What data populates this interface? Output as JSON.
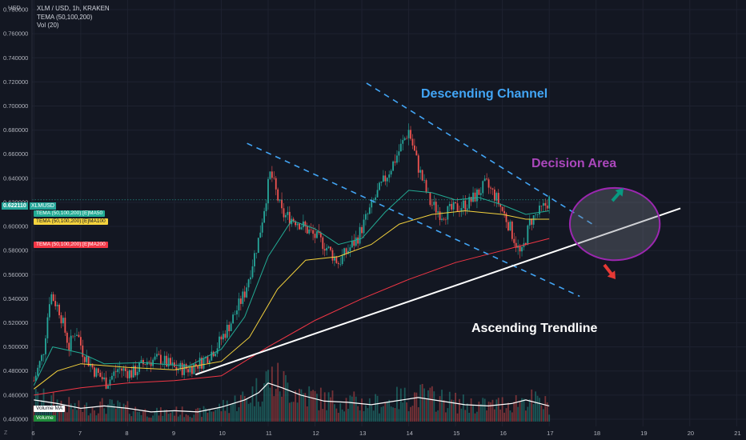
{
  "header": {
    "currency": "USD",
    "symbol_line": "XLM / USD, 1h, KRAKEN",
    "indicator1": "TEMA (50,100,200)",
    "indicator2": "Vol (20)"
  },
  "price_tags": {
    "last_price": "0.622110",
    "last_symbol": "XLMUSD",
    "ema50": "TEMA (50,100,200):[E]MA50",
    "ema100": "TEMA (50,100,200):[E]MA100",
    "ema200": "TEMA (50,100,200):[E]MA200",
    "volume_ma": "Volume MA",
    "volume": "Volume"
  },
  "colors": {
    "background": "#131722",
    "candle_up": "#26a69a",
    "candle_down": "#ef5350",
    "ema50": "#22ab94",
    "ema100": "#f5d33d",
    "ema200": "#f23645",
    "channel": "#42a5f5",
    "trendline": "#ffffff",
    "decision": "#9c27b0",
    "arrow_up": "#089981",
    "arrow_down": "#e53935",
    "last_price": "#26a69a"
  },
  "annotations": {
    "descending_channel": "Descending Channel",
    "decision_area": "Decision Area",
    "ascending_trendline": "Ascending Trendline"
  },
  "chart_data": {
    "type": "candlestick",
    "x_unit": "day",
    "x_ticks": [
      "6",
      "7",
      "8",
      "9",
      "10",
      "11",
      "12",
      "13",
      "14",
      "15",
      "16",
      "17",
      "18",
      "19",
      "20",
      "21"
    ],
    "y_ticks": [
      "0.440000",
      "0.460000",
      "0.480000",
      "0.500000",
      "0.520000",
      "0.540000",
      "0.560000",
      "0.580000",
      "0.600000",
      "0.620000",
      "0.640000",
      "0.660000",
      "0.680000",
      "0.700000",
      "0.720000",
      "0.740000",
      "0.760000",
      "0.780000"
    ],
    "ylim": [
      0.434,
      0.788
    ],
    "xlim": [
      5.96,
      21.2
    ],
    "last_price": 0.62211,
    "price_path": [
      [
        6.0,
        0.472
      ],
      [
        6.2,
        0.495
      ],
      [
        6.35,
        0.545
      ],
      [
        6.55,
        0.53
      ],
      [
        6.75,
        0.5
      ],
      [
        6.9,
        0.515
      ],
      [
        7.05,
        0.495
      ],
      [
        7.3,
        0.48
      ],
      [
        7.55,
        0.47
      ],
      [
        7.8,
        0.482
      ],
      [
        8.1,
        0.478
      ],
      [
        8.4,
        0.488
      ],
      [
        8.7,
        0.49
      ],
      [
        9.0,
        0.482
      ],
      [
        9.3,
        0.482
      ],
      [
        9.6,
        0.488
      ],
      [
        9.9,
        0.5
      ],
      [
        10.2,
        0.52
      ],
      [
        10.5,
        0.545
      ],
      [
        10.8,
        0.59
      ],
      [
        11.05,
        0.645
      ],
      [
        11.3,
        0.61
      ],
      [
        11.6,
        0.605
      ],
      [
        11.9,
        0.595
      ],
      [
        12.2,
        0.585
      ],
      [
        12.5,
        0.57
      ],
      [
        12.9,
        0.59
      ],
      [
        13.3,
        0.625
      ],
      [
        13.7,
        0.655
      ],
      [
        14.0,
        0.68
      ],
      [
        14.2,
        0.65
      ],
      [
        14.45,
        0.62
      ],
      [
        14.7,
        0.61
      ],
      [
        15.0,
        0.615
      ],
      [
        15.3,
        0.62
      ],
      [
        15.65,
        0.635
      ],
      [
        15.85,
        0.625
      ],
      [
        16.1,
        0.605
      ],
      [
        16.4,
        0.575
      ],
      [
        16.6,
        0.605
      ],
      [
        16.8,
        0.612
      ],
      [
        17.0,
        0.622
      ]
    ],
    "ema50": [
      [
        6.0,
        0.468
      ],
      [
        6.4,
        0.5
      ],
      [
        7.0,
        0.495
      ],
      [
        7.5,
        0.486
      ],
      [
        8.3,
        0.487
      ],
      [
        9.3,
        0.484
      ],
      [
        10.0,
        0.498
      ],
      [
        10.5,
        0.525
      ],
      [
        11.0,
        0.575
      ],
      [
        11.5,
        0.605
      ],
      [
        12.0,
        0.598
      ],
      [
        12.5,
        0.585
      ],
      [
        13.0,
        0.59
      ],
      [
        13.5,
        0.612
      ],
      [
        14.0,
        0.63
      ],
      [
        14.5,
        0.628
      ],
      [
        15.0,
        0.622
      ],
      [
        15.5,
        0.624
      ],
      [
        16.0,
        0.618
      ],
      [
        16.5,
        0.61
      ],
      [
        17.0,
        0.613
      ]
    ],
    "ema100": [
      [
        6.0,
        0.465
      ],
      [
        6.5,
        0.48
      ],
      [
        7.0,
        0.486
      ],
      [
        8.0,
        0.483
      ],
      [
        9.0,
        0.481
      ],
      [
        10.0,
        0.488
      ],
      [
        10.6,
        0.508
      ],
      [
        11.2,
        0.548
      ],
      [
        11.8,
        0.572
      ],
      [
        12.5,
        0.575
      ],
      [
        13.2,
        0.585
      ],
      [
        13.8,
        0.602
      ],
      [
        14.5,
        0.61
      ],
      [
        15.2,
        0.613
      ],
      [
        16.0,
        0.61
      ],
      [
        16.5,
        0.606
      ],
      [
        17.0,
        0.606
      ]
    ],
    "ema200": [
      [
        6.0,
        0.46
      ],
      [
        7.0,
        0.466
      ],
      [
        8.0,
        0.47
      ],
      [
        9.0,
        0.472
      ],
      [
        10.0,
        0.476
      ],
      [
        11.0,
        0.5
      ],
      [
        12.0,
        0.522
      ],
      [
        13.0,
        0.54
      ],
      [
        14.0,
        0.556
      ],
      [
        15.0,
        0.57
      ],
      [
        16.0,
        0.58
      ],
      [
        17.0,
        0.59
      ]
    ],
    "volume_ma": [
      [
        6.0,
        0.456
      ],
      [
        6.5,
        0.453
      ],
      [
        7.0,
        0.449
      ],
      [
        7.5,
        0.451
      ],
      [
        8.0,
        0.449
      ],
      [
        8.5,
        0.446
      ],
      [
        9.0,
        0.447
      ],
      [
        9.5,
        0.446
      ],
      [
        10.0,
        0.45
      ],
      [
        10.5,
        0.456
      ],
      [
        10.8,
        0.462
      ],
      [
        11.0,
        0.47
      ],
      [
        11.3,
        0.466
      ],
      [
        11.7,
        0.46
      ],
      [
        12.2,
        0.455
      ],
      [
        12.7,
        0.454
      ],
      [
        13.2,
        0.452
      ],
      [
        13.7,
        0.455
      ],
      [
        14.2,
        0.458
      ],
      [
        14.7,
        0.455
      ],
      [
        15.2,
        0.452
      ],
      [
        15.7,
        0.451
      ],
      [
        16.2,
        0.453
      ],
      [
        16.5,
        0.456
      ],
      [
        17.0,
        0.451
      ]
    ],
    "channel_upper": [
      [
        13.1,
        0.719
      ],
      [
        18.0,
        0.6
      ]
    ],
    "channel_lower": [
      [
        10.55,
        0.669
      ],
      [
        17.65,
        0.542
      ]
    ],
    "ascending_trendline": [
      [
        9.45,
        0.477
      ],
      [
        19.8,
        0.615
      ]
    ],
    "decision_area_center": [
      18.4,
      0.602
    ],
    "decision_area_radius_days": 0.96,
    "decision_area_radius_price": 0.03
  }
}
